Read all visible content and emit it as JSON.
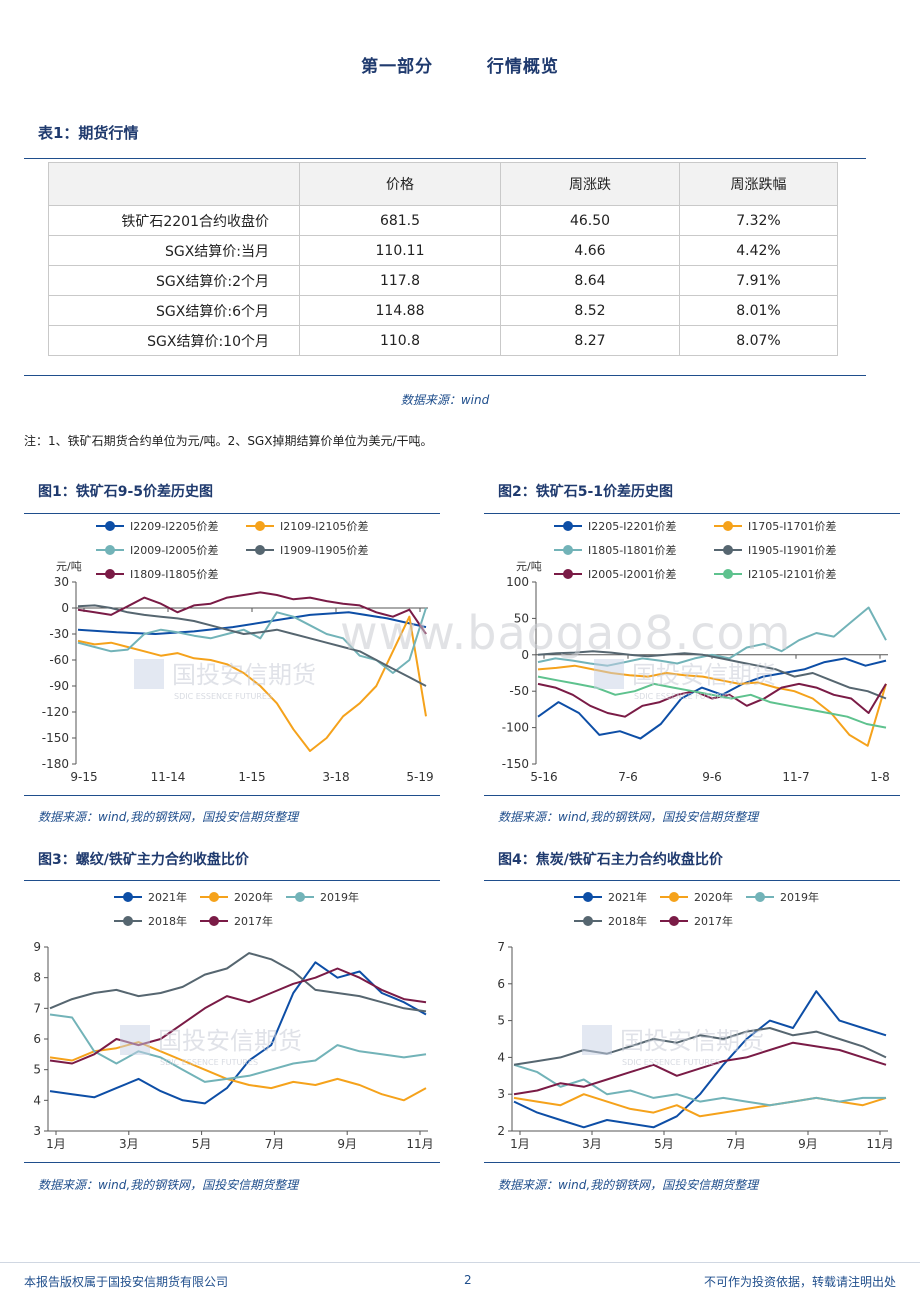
{
  "section": {
    "part": "第一部分",
    "title": "行情概览"
  },
  "table1": {
    "title": "表1：期货行情",
    "headers": [
      "",
      "价格",
      "周涨跌",
      "周涨跌幅"
    ],
    "rows": [
      [
        "铁矿石2201合约收盘价",
        "681.5",
        "46.50",
        "7.32%"
      ],
      [
        "SGX结算价:当月",
        "110.11",
        "4.66",
        "4.42%"
      ],
      [
        "SGX结算价:2个月",
        "117.8",
        "8.64",
        "7.91%"
      ],
      [
        "SGX结算价:6个月",
        "114.88",
        "8.52",
        "8.01%"
      ],
      [
        "SGX结算价:10个月",
        "110.8",
        "8.27",
        "8.07%"
      ]
    ],
    "source": "数据来源：wind"
  },
  "note": "注：1、铁矿石期货合约单位为元/吨。2、SGX掉期结算价单位为美元/干吨。",
  "figures": [
    {
      "title": "图1：铁矿石9-5价差历史图",
      "source": "数据来源：wind,我的钢铁网，国投安信期货整理"
    },
    {
      "title": "图2：铁矿石5-1价差历史图",
      "source": "数据来源：wind,我的钢铁网，国投安信期货整理"
    },
    {
      "title": "图3：螺纹/铁矿主力合约收盘比价",
      "source": "数据来源：wind,我的钢铁网，国投安信期货整理"
    },
    {
      "title": "图4：焦炭/铁矿石主力合约收盘比价",
      "source": "数据来源：wind,我的钢铁网，国投安信期货整理"
    }
  ],
  "watermark": {
    "site": "www.baogao8.com",
    "logo_cn": "国投安信期货",
    "logo_en": "SDIC ESSENCE FUTURES"
  },
  "footer": {
    "left": "本报告版权属于国投安信期货有限公司",
    "page": "2",
    "right": "不可作为投资依据，转载请注明出处"
  },
  "colors": {
    "blue": "#0d4ea6",
    "orange": "#f5a21b",
    "teal": "#72b3b8",
    "gray": "#566670",
    "purple": "#7a1b46",
    "green": "#5ec28e",
    "rule": "#1f4e8c"
  },
  "chart_data": [
    {
      "type": "line",
      "unit_label": "元/吨",
      "y_ticks": [
        30,
        0,
        -30,
        -60,
        -90,
        -120,
        -150,
        -180
      ],
      "ylim": [
        -180,
        30
      ],
      "x_ticks": [
        "9-15",
        "11-14",
        "1-15",
        "3-18",
        "5-19"
      ],
      "series": [
        {
          "name": "I2209-I2205价差",
          "color": "blue",
          "values": [
            -25,
            -28,
            -30,
            -27,
            -22,
            -15,
            -8,
            -5,
            -12,
            -22
          ]
        },
        {
          "name": "I2109-I2105价差",
          "color": "orange",
          "values": [
            -38,
            -42,
            -40,
            -45,
            -50,
            -55,
            -52,
            -58,
            -60,
            -65,
            -75,
            -90,
            -110,
            -140,
            -165,
            -150,
            -125,
            -110,
            -90,
            -50,
            -10,
            -125
          ]
        },
        {
          "name": "I2009-I2005价差",
          "color": "teal",
          "values": [
            -40,
            -45,
            -50,
            -48,
            -30,
            -25,
            -28,
            -32,
            -35,
            -30,
            -25,
            -35,
            -5,
            -10,
            -20,
            -30,
            -35,
            -55,
            -60,
            -75,
            -60,
            0
          ]
        },
        {
          "name": "I1909-I1905价差",
          "color": "gray",
          "values": [
            2,
            3,
            0,
            -5,
            -8,
            -10,
            -12,
            -15,
            -20,
            -25,
            -30,
            -28,
            -25,
            -30,
            -35,
            -40,
            -45,
            -50,
            -60,
            -70,
            -80,
            -90
          ]
        },
        {
          "name": "I1809-I1805价差",
          "color": "purple",
          "values": [
            -2,
            -5,
            -8,
            2,
            12,
            5,
            -5,
            3,
            5,
            12,
            15,
            18,
            15,
            10,
            12,
            8,
            5,
            3,
            -5,
            -10,
            -2,
            -30
          ]
        }
      ]
    },
    {
      "type": "line",
      "unit_label": "元/吨",
      "y_ticks": [
        100,
        50,
        0,
        -50,
        -100,
        -150
      ],
      "ylim": [
        -150,
        100
      ],
      "x_ticks": [
        "5-16",
        "7-6",
        "9-6",
        "11-7",
        "1-8"
      ],
      "series": [
        {
          "name": "I2205-I2201价差",
          "color": "blue",
          "values": [
            -85,
            -65,
            -80,
            -110,
            -105,
            -115,
            -95,
            -60,
            -45,
            -55,
            -40,
            -30,
            -25,
            -20,
            -10,
            -5,
            -15,
            -8
          ]
        },
        {
          "name": "I1705-I1701价差",
          "color": "orange",
          "values": [
            -20,
            -18,
            -15,
            -20,
            -25,
            -28,
            -30,
            -25,
            -28,
            -30,
            -35,
            -40,
            -38,
            -45,
            -50,
            -60,
            -80,
            -110,
            -125,
            -40
          ]
        },
        {
          "name": "I1805-I1801价差",
          "color": "teal",
          "values": [
            -10,
            -5,
            -8,
            -12,
            -15,
            -10,
            -5,
            -8,
            -12,
            -5,
            0,
            -5,
            10,
            15,
            5,
            20,
            30,
            25,
            45,
            65,
            20
          ]
        },
        {
          "name": "I1905-I1901价差",
          "color": "gray",
          "values": [
            0,
            2,
            3,
            5,
            3,
            0,
            -2,
            0,
            2,
            0,
            -5,
            -10,
            -15,
            -20,
            -30,
            -25,
            -35,
            -45,
            -50,
            -60
          ]
        },
        {
          "name": "I2005-I2001价差",
          "color": "purple",
          "values": [
            -40,
            -45,
            -55,
            -70,
            -80,
            -85,
            -70,
            -65,
            -55,
            -50,
            -60,
            -55,
            -70,
            -60,
            -45,
            -40,
            -45,
            -55,
            -60,
            -80,
            -40
          ]
        },
        {
          "name": "I2105-I2101价差",
          "color": "green",
          "values": [
            -30,
            -35,
            -40,
            -45,
            -55,
            -50,
            -40,
            -45,
            -50,
            -55,
            -60,
            -55,
            -65,
            -70,
            -75,
            -80,
            -85,
            -95,
            -100
          ]
        }
      ]
    },
    {
      "type": "line",
      "y_ticks": [
        9,
        8,
        7,
        6,
        5,
        4,
        3
      ],
      "ylim": [
        3,
        9
      ],
      "x_ticks": [
        "1月",
        "3月",
        "5月",
        "7月",
        "9月",
        "11月"
      ],
      "series": [
        {
          "name": "2021年",
          "color": "blue",
          "values": [
            4.3,
            4.2,
            4.1,
            4.4,
            4.7,
            4.3,
            4.0,
            3.9,
            4.4,
            5.3,
            5.8,
            7.5,
            8.5,
            8.0,
            8.2,
            7.5,
            7.2,
            6.8
          ]
        },
        {
          "name": "2020年",
          "color": "orange",
          "values": [
            5.4,
            5.3,
            5.6,
            5.7,
            5.9,
            5.6,
            5.3,
            5.0,
            4.7,
            4.5,
            4.4,
            4.6,
            4.5,
            4.7,
            4.5,
            4.2,
            4.0,
            4.4
          ]
        },
        {
          "name": "2019年",
          "color": "teal",
          "values": [
            6.8,
            6.7,
            5.6,
            5.2,
            5.6,
            5.4,
            5.0,
            4.6,
            4.7,
            4.8,
            5.0,
            5.2,
            5.3,
            5.8,
            5.6,
            5.5,
            5.4,
            5.5
          ]
        },
        {
          "name": "2018年",
          "color": "gray",
          "values": [
            7.0,
            7.3,
            7.5,
            7.6,
            7.4,
            7.5,
            7.7,
            8.1,
            8.3,
            8.8,
            8.6,
            8.2,
            7.6,
            7.5,
            7.4,
            7.2,
            7.0,
            6.9
          ]
        },
        {
          "name": "2017年",
          "color": "purple",
          "values": [
            5.3,
            5.2,
            5.5,
            6.0,
            5.8,
            6.0,
            6.5,
            7.0,
            7.4,
            7.2,
            7.5,
            7.8,
            8.0,
            8.3,
            8.0,
            7.6,
            7.3,
            7.2
          ]
        }
      ]
    },
    {
      "type": "line",
      "y_ticks": [
        7,
        6,
        5,
        4,
        3,
        2
      ],
      "ylim": [
        2,
        7
      ],
      "x_ticks": [
        "1月",
        "3月",
        "5月",
        "7月",
        "9月",
        "11月"
      ],
      "series": [
        {
          "name": "2021年",
          "color": "blue",
          "values": [
            2.8,
            2.5,
            2.3,
            2.1,
            2.3,
            2.2,
            2.1,
            2.4,
            3.0,
            3.8,
            4.5,
            5.0,
            4.8,
            5.8,
            5.0,
            4.8,
            4.6
          ]
        },
        {
          "name": "2020年",
          "color": "orange",
          "values": [
            2.9,
            2.8,
            2.7,
            3.0,
            2.8,
            2.6,
            2.5,
            2.7,
            2.4,
            2.5,
            2.6,
            2.7,
            2.8,
            2.9,
            2.8,
            2.7,
            2.9
          ]
        },
        {
          "name": "2019年",
          "color": "teal",
          "values": [
            3.8,
            3.6,
            3.2,
            3.4,
            3.0,
            3.1,
            2.9,
            3.0,
            2.8,
            2.9,
            2.8,
            2.7,
            2.8,
            2.9,
            2.8,
            2.9,
            2.9
          ]
        },
        {
          "name": "2018年",
          "color": "gray",
          "values": [
            3.8,
            3.9,
            4.0,
            4.2,
            4.1,
            4.3,
            4.5,
            4.4,
            4.6,
            4.5,
            4.7,
            4.8,
            4.6,
            4.7,
            4.5,
            4.3,
            4.0
          ]
        },
        {
          "name": "2017年",
          "color": "purple",
          "values": [
            3.0,
            3.1,
            3.3,
            3.2,
            3.4,
            3.6,
            3.8,
            3.5,
            3.7,
            3.9,
            4.0,
            4.2,
            4.4,
            4.3,
            4.2,
            4.0,
            3.8
          ]
        }
      ]
    }
  ]
}
